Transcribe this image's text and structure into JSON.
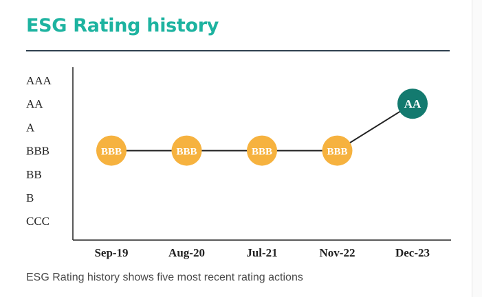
{
  "title": "ESG Rating history",
  "caption": "ESG Rating history shows five most recent rating actions",
  "colors": {
    "title": "#1db3a0",
    "rule": "#2e3f4f",
    "point_default": "#f6b23f",
    "point_latest": "#137a6f",
    "line": "#222222"
  },
  "chart_data": {
    "type": "line",
    "title": "ESG Rating history",
    "xlabel": "",
    "ylabel": "",
    "rating_scale": [
      "AAA",
      "AA",
      "A",
      "BBB",
      "BB",
      "B",
      "CCC"
    ],
    "categories": [
      "Sep-19",
      "Aug-20",
      "Jul-21",
      "Nov-22",
      "Dec-23"
    ],
    "series": [
      {
        "values": [
          "BBB",
          "BBB",
          "BBB",
          "BBB",
          "AA"
        ]
      }
    ],
    "grid": false,
    "legend": "none"
  }
}
